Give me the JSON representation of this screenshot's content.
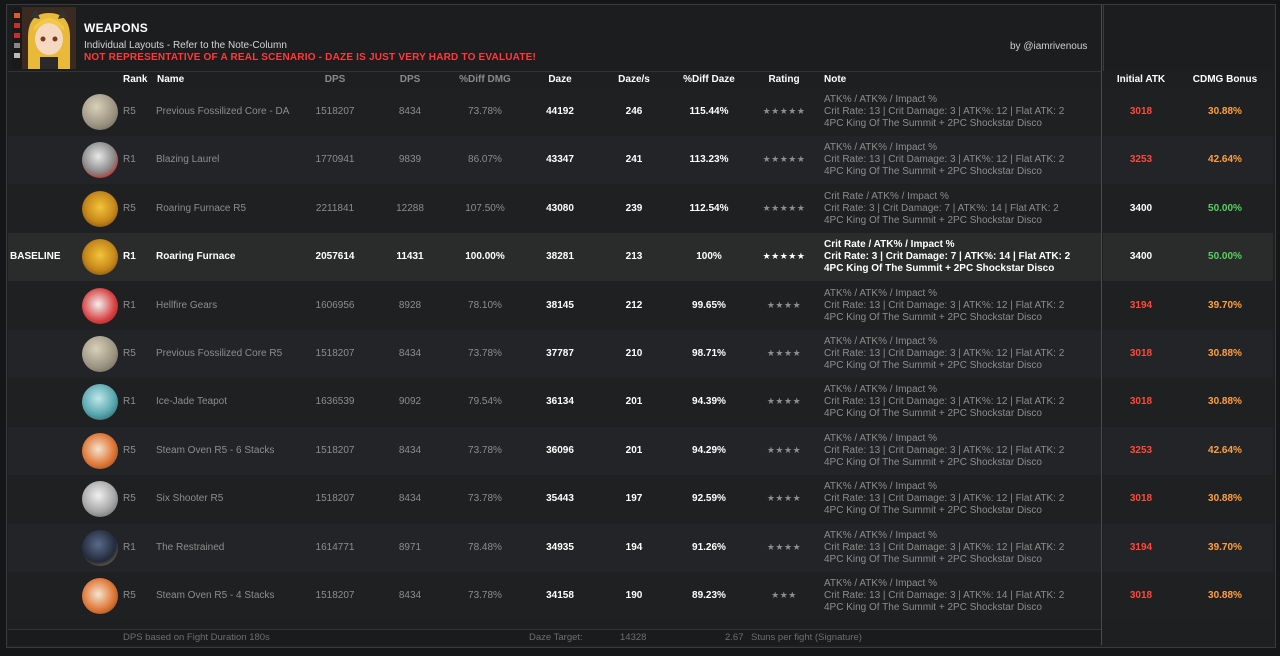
{
  "header": {
    "title": "WEAPONS",
    "subtitle": "Individual Layouts - Refer to the Note-Column",
    "warning": "NOT REPRESENTATIVE OF A REAL SCENARIO - DAZE IS JUST VERY HARD TO EVALUATE!",
    "credit": "by @iamrivenous"
  },
  "columns": {
    "rank": "Rank",
    "name": "Name",
    "dps1": "DPS",
    "dps2": "DPS",
    "diff_dmg": "%Diff DMG",
    "daze": "Daze",
    "daze_s": "Daze/s",
    "diff_daze": "%Diff Daze",
    "rating": "Rating",
    "note": "Note",
    "initial_atk": "Initial ATK",
    "cdmg_bonus": "CDMG Bonus"
  },
  "colors": {
    "red": "#ff4a3a",
    "orange": "#ffa040",
    "green": "#58d060",
    "warning": "#ff3a3a"
  },
  "rows": [
    {
      "label": "",
      "rank": "R5",
      "name": "Previous Fossilized Core - DA",
      "dps1": "1518207",
      "dps2": "8434",
      "diff_dmg": "73.78%",
      "daze": "44192",
      "daze_s": "246",
      "diff_daze": "115.44%",
      "rating": "★★★★★",
      "note1": "ATK% / ATK% / Impact %",
      "note2": "Crit Rate: 13 | Crit Damage: 3 | ATK%: 12 | Flat ATK: 2",
      "note3": "4PC King Of The Summit + 2PC Shockstar Disco",
      "atk": "3018",
      "atk_color": "red",
      "cdmg": "30.88%",
      "cdmg_color": "orange",
      "icon": "fossilized-core-icon"
    },
    {
      "label": "",
      "rank": "R1",
      "name": "Blazing Laurel",
      "dps1": "1770941",
      "dps2": "9839",
      "diff_dmg": "86.07%",
      "daze": "43347",
      "daze_s": "241",
      "diff_daze": "113.23%",
      "rating": "★★★★★",
      "note1": "ATK% / ATK% / Impact %",
      "note2": "Crit Rate: 13 | Crit Damage: 3 | ATK%: 12 | Flat ATK: 2",
      "note3": "4PC King Of The Summit + 2PC Shockstar Disco",
      "atk": "3253",
      "atk_color": "red",
      "cdmg": "42.64%",
      "cdmg_color": "orange",
      "icon": "blazing-laurel-icon"
    },
    {
      "label": "",
      "rank": "R5",
      "name": "Roaring Furnace R5",
      "dps1": "2211841",
      "dps2": "12288",
      "diff_dmg": "107.50%",
      "daze": "43080",
      "daze_s": "239",
      "diff_daze": "112.54%",
      "rating": "★★★★★",
      "note1": "Crit Rate / ATK% / Impact %",
      "note2": "Crit Rate: 3 | Crit Damage: 7 | ATK%: 14 | Flat ATK: 2",
      "note3": "4PC King Of The Summit + 2PC Shockstar Disco",
      "atk": "3400",
      "atk_color": "white",
      "cdmg": "50.00%",
      "cdmg_color": "green",
      "icon": "roaring-furnace-icon"
    },
    {
      "label": "BASELINE",
      "rank": "R1",
      "name": "Roaring Furnace",
      "dps1": "2057614",
      "dps2": "11431",
      "diff_dmg": "100.00%",
      "daze": "38281",
      "daze_s": "213",
      "diff_daze": "100%",
      "rating": "★★★★★",
      "note1": "Crit Rate / ATK% / Impact %",
      "note2": "Crit Rate: 3 | Crit Damage: 7 | ATK%: 14 | Flat ATK: 2",
      "note3": "4PC King Of The Summit + 2PC Shockstar Disco",
      "atk": "3400",
      "atk_color": "white",
      "cdmg": "50.00%",
      "cdmg_color": "green",
      "icon": "roaring-furnace-icon"
    },
    {
      "label": "",
      "rank": "R1",
      "name": "Hellfire Gears",
      "dps1": "1606956",
      "dps2": "8928",
      "diff_dmg": "78.10%",
      "daze": "38145",
      "daze_s": "212",
      "diff_daze": "99.65%",
      "rating": "★★★★",
      "note1": "ATK% / ATK% / Impact %",
      "note2": "Crit Rate: 13 | Crit Damage: 3 | ATK%: 12 | Flat ATK: 2",
      "note3": "4PC King Of The Summit + 2PC Shockstar Disco",
      "atk": "3194",
      "atk_color": "red",
      "cdmg": "39.70%",
      "cdmg_color": "orange",
      "icon": "hellfire-gears-icon"
    },
    {
      "label": "",
      "rank": "R5",
      "name": "Previous Fossilized Core R5",
      "dps1": "1518207",
      "dps2": "8434",
      "diff_dmg": "73.78%",
      "daze": "37787",
      "daze_s": "210",
      "diff_daze": "98.71%",
      "rating": "★★★★",
      "note1": "ATK% / ATK% / Impact %",
      "note2": "Crit Rate: 13 | Crit Damage: 3 | ATK%: 12 | Flat ATK: 2",
      "note3": "4PC King Of The Summit + 2PC Shockstar Disco",
      "atk": "3018",
      "atk_color": "red",
      "cdmg": "30.88%",
      "cdmg_color": "orange",
      "icon": "fossilized-core-icon"
    },
    {
      "label": "",
      "rank": "R1",
      "name": "Ice-Jade Teapot",
      "dps1": "1636539",
      "dps2": "9092",
      "diff_dmg": "79.54%",
      "daze": "36134",
      "daze_s": "201",
      "diff_daze": "94.39%",
      "rating": "★★★★",
      "note1": "ATK% / ATK% / Impact %",
      "note2": "Crit Rate: 13 | Crit Damage: 3 | ATK%: 12 | Flat ATK: 2",
      "note3": "4PC King Of The Summit + 2PC Shockstar Disco",
      "atk": "3018",
      "atk_color": "red",
      "cdmg": "30.88%",
      "cdmg_color": "orange",
      "icon": "teapot-icon"
    },
    {
      "label": "",
      "rank": "R5",
      "name": "Steam Oven R5 - 6 Stacks",
      "dps1": "1518207",
      "dps2": "8434",
      "diff_dmg": "73.78%",
      "daze": "36096",
      "daze_s": "201",
      "diff_daze": "94.29%",
      "rating": "★★★★",
      "note1": "ATK% / ATK% / Impact %",
      "note2": "Crit Rate: 13 | Crit Damage: 3 | ATK%: 12 | Flat ATK: 2",
      "note3": "4PC King Of The Summit + 2PC Shockstar Disco",
      "atk": "3253",
      "atk_color": "red",
      "cdmg": "42.64%",
      "cdmg_color": "orange",
      "icon": "steam-oven-icon"
    },
    {
      "label": "",
      "rank": "R5",
      "name": "Six Shooter R5",
      "dps1": "1518207",
      "dps2": "8434",
      "diff_dmg": "73.78%",
      "daze": "35443",
      "daze_s": "197",
      "diff_daze": "92.59%",
      "rating": "★★★★",
      "note1": "ATK% / ATK% / Impact %",
      "note2": "Crit Rate: 13 | Crit Damage: 3 | ATK%: 12 | Flat ATK: 2",
      "note3": "4PC King Of The Summit + 2PC Shockstar Disco",
      "atk": "3018",
      "atk_color": "red",
      "cdmg": "30.88%",
      "cdmg_color": "orange",
      "icon": "six-shooter-icon"
    },
    {
      "label": "",
      "rank": "R1",
      "name": "The Restrained",
      "dps1": "1614771",
      "dps2": "8971",
      "diff_dmg": "78.48%",
      "daze": "34935",
      "daze_s": "194",
      "diff_daze": "91.26%",
      "rating": "★★★★",
      "note1": "ATK% / ATK% / Impact %",
      "note2": "Crit Rate: 13 | Crit Damage: 3 | ATK%: 12 | Flat ATK: 2",
      "note3": "4PC King Of The Summit + 2PC Shockstar Disco",
      "atk": "3194",
      "atk_color": "red",
      "cdmg": "39.70%",
      "cdmg_color": "orange",
      "icon": "restrained-icon"
    },
    {
      "label": "",
      "rank": "R5",
      "name": "Steam Oven R5 - 4 Stacks",
      "dps1": "1518207",
      "dps2": "8434",
      "diff_dmg": "73.78%",
      "daze": "34158",
      "daze_s": "190",
      "diff_daze": "89.23%",
      "rating": "★★★",
      "note1": "ATK% / ATK% / Impact %",
      "note2": "Crit Rate: 13 | Crit Damage: 3 | ATK%: 14 | Flat ATK: 2",
      "note3": "4PC King Of The Summit + 2PC Shockstar Disco",
      "atk": "3018",
      "atk_color": "red",
      "cdmg": "30.88%",
      "cdmg_color": "orange",
      "icon": "steam-oven-icon"
    }
  ],
  "footer": {
    "fight_duration": "DPS based on Fight Duration 180s",
    "daze_target_label": "Daze Target:",
    "daze_target_value": "14328",
    "stuns": "2.67",
    "stuns_label": "Stuns per fight (Signature)"
  }
}
